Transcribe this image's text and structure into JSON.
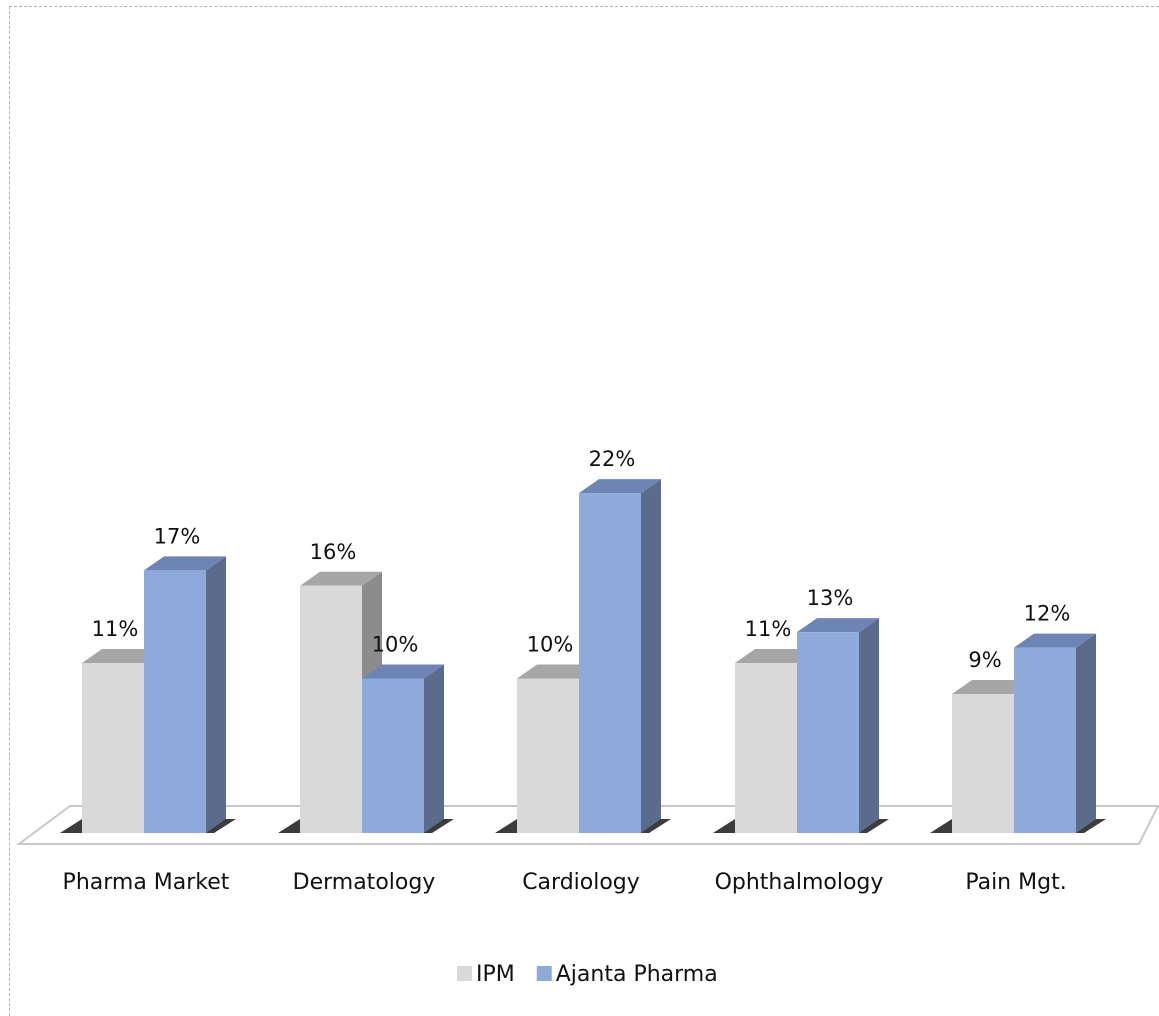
{
  "chart_data": {
    "type": "bar",
    "style": "3d-clustered-column",
    "categories": [
      "Pharma Market",
      "Dermatology",
      "Cardiology",
      "Ophthalmology",
      "Pain Mgt."
    ],
    "series": [
      {
        "name": "IPM",
        "values": [
          11,
          16,
          10,
          11,
          9
        ],
        "labels": [
          "11%",
          "16%",
          "10%",
          "11%",
          "9%"
        ],
        "color": "#d9d9d9",
        "side_color": "#8c8c8c",
        "top_color": "#a6a6a6"
      },
      {
        "name": "Ajanta Pharma",
        "values": [
          17,
          10,
          22,
          13,
          12
        ],
        "labels": [
          "17%",
          "10%",
          "22%",
          "13%",
          "12%"
        ],
        "color": "#8eaadb",
        "side_color": "#5a6b8c",
        "top_color": "#6d84b4"
      }
    ],
    "value_unit": "%",
    "ylim": [
      0,
      22
    ],
    "grid": false,
    "legend_position": "bottom"
  }
}
